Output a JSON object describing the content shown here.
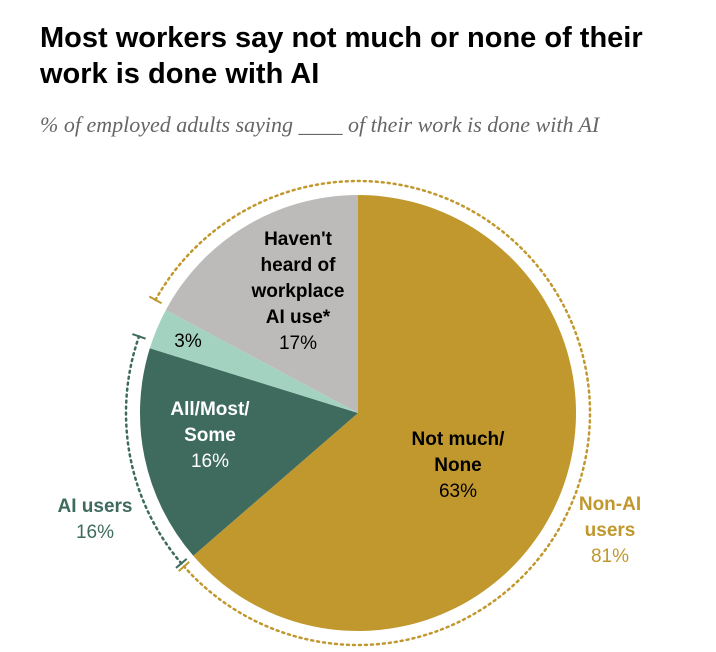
{
  "title": "Most workers say not much or none of their work is done with AI",
  "subtitle": "% of employed adults saying ____ of their work is done with AI",
  "chart_data": {
    "type": "pie",
    "title": "Most workers say not much or none of their work is done with AI",
    "subtitle": "% of employed adults saying ____ of their work is done with AI",
    "slices": [
      {
        "label_lines": [
          "Not much/",
          "None"
        ],
        "value": 63,
        "value_label": "63%",
        "color": "#c0982d",
        "text_color": "#000000"
      },
      {
        "label_lines": [
          "All/Most/",
          "Some"
        ],
        "value": 16,
        "value_label": "16%",
        "color": "#3e6b5e",
        "text_color": "#ffffff"
      },
      {
        "label_lines": [],
        "value": 3,
        "value_label": "3%",
        "color": "#a3d3c0",
        "text_color": "#000000"
      },
      {
        "label_lines": [
          "Haven't",
          "heard of",
          "workplace",
          "AI use*"
        ],
        "value": 17,
        "value_label": "17%",
        "color": "#bdbbba",
        "text_color": "#000000"
      }
    ],
    "groups": [
      {
        "name": "Non-AI users",
        "name_lines": [
          "Non-AI",
          "users"
        ],
        "value_label": "81%",
        "color": "#c0982d"
      },
      {
        "name": "AI users",
        "name_lines": [
          "AI users"
        ],
        "value_label": "16%",
        "color": "#3e6b5e"
      }
    ]
  }
}
